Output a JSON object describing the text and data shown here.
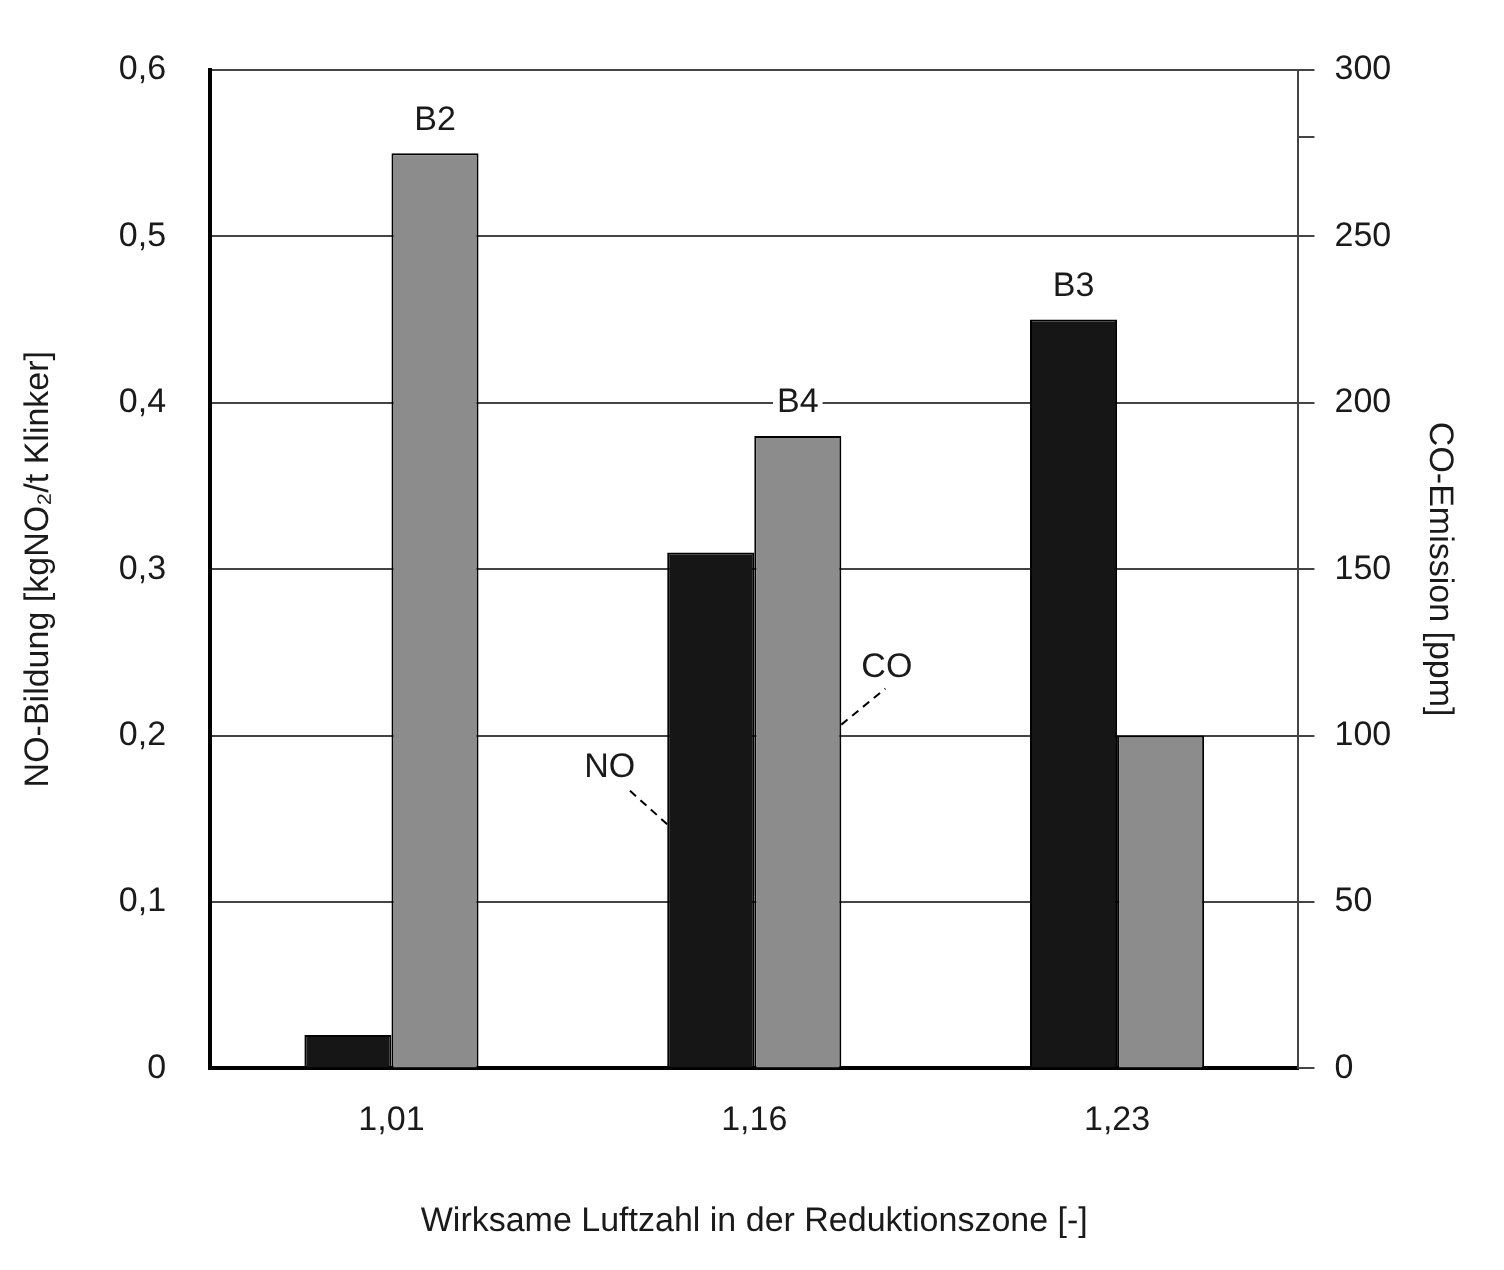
{
  "chart_data": {
    "type": "bar",
    "xlabel": "Wirksame Luftzahl in der Reduktionszone [-]",
    "ylabel": "NO-Bildung [kgNO₂/t Klinker]",
    "y2label": "CO-Emission [ppm]",
    "categories": [
      "1,01",
      "1,16",
      "1,23"
    ],
    "series": [
      {
        "name": "NO",
        "color": "#161616",
        "values": [
          0.02,
          0.31,
          0.45
        ]
      },
      {
        "name": "CO",
        "color": "#8c8c8c",
        "axis": "y2",
        "values": [
          275,
          190,
          100
        ]
      }
    ],
    "ylim": [
      0,
      0.6
    ],
    "yticks": [
      0,
      {
        "value": 0.1,
        "label": "0,1"
      },
      {
        "value": 0.2,
        "label": "0,2"
      },
      {
        "value": 0.3,
        "label": "0,3"
      },
      {
        "value": 0.4,
        "label": "0,4"
      },
      {
        "value": 0.5,
        "label": "0,5"
      },
      {
        "value": 0.6,
        "label": "0,6"
      }
    ],
    "y2lim": [
      0,
      300
    ],
    "y2ticks": [
      0,
      50,
      100,
      150,
      200,
      250,
      {
        "value": 280,
        "label": null
      },
      300
    ],
    "annotations": [
      {
        "text": "B2",
        "x": "1,01",
        "y": 0.55
      },
      {
        "text": "B4",
        "x": "1,16",
        "y": 0.38
      },
      {
        "text": "B3",
        "x": "1,23",
        "y": 0.45
      }
    ],
    "grid": "y",
    "legend": false
  }
}
